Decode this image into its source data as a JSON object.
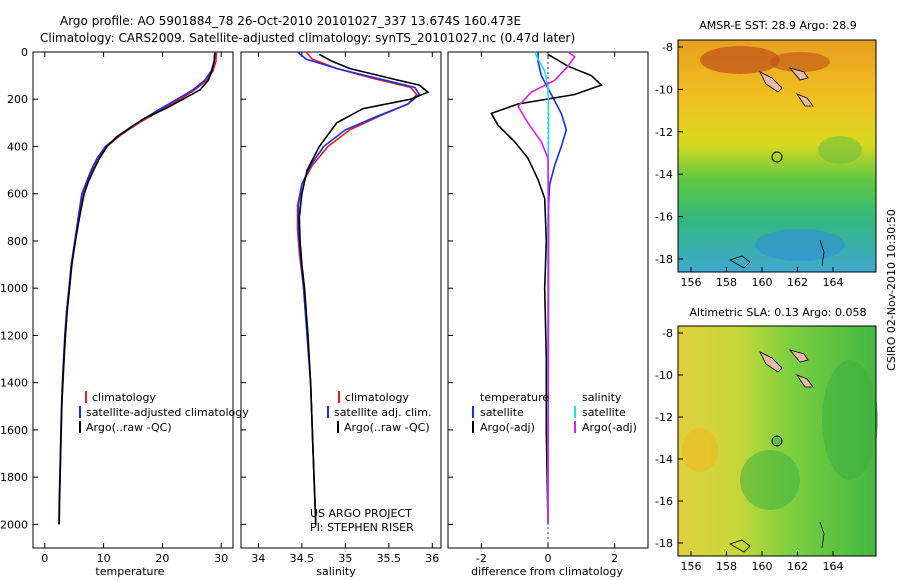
{
  "header": {
    "line1": "Argo profile: AO 5901884_78 26-Oct-2010 20101027_337 13.674S 160.473E",
    "line2": "Climatology: CARS2009. Satellite-adjusted climatology: synTS_20101027.nc (0.47d later)"
  },
  "side_label": "CSIRO 02-Nov-2010 10:30:50",
  "colors": {
    "climatology": "#e02020",
    "satellite": "#1a2ee6",
    "argo": "#000000",
    "sal_sat": "#20e0e0",
    "sal_argo": "#e020e0"
  },
  "chart_data": [
    {
      "type": "line",
      "id": "temperature",
      "xlabel": "temperature",
      "ylabel": "",
      "xlim": [
        -2,
        32
      ],
      "ylim": [
        2100,
        0
      ],
      "xticks": [
        0,
        10,
        20,
        30
      ],
      "yticks": [
        0,
        200,
        400,
        600,
        800,
        1000,
        1200,
        1400,
        1600,
        1800,
        2000
      ],
      "legend": [
        "climatology",
        "satellite-adjusted climatology",
        "Argo(..raw -QC)"
      ],
      "series": [
        {
          "name": "climatology",
          "color": "red",
          "points": [
            [
              29.2,
              0
            ],
            [
              29.1,
              40
            ],
            [
              28.6,
              80
            ],
            [
              27.5,
              120
            ],
            [
              25.5,
              160
            ],
            [
              23,
              200
            ],
            [
              19.5,
              250
            ],
            [
              16,
              300
            ],
            [
              13,
              350
            ],
            [
              10.5,
              400
            ],
            [
              9,
              450
            ],
            [
              8,
              500
            ],
            [
              7.2,
              550
            ],
            [
              6.4,
              600
            ],
            [
              5.8,
              700
            ],
            [
              5.2,
              800
            ],
            [
              4.6,
              900
            ],
            [
              4.2,
              1000
            ],
            [
              3.8,
              1100
            ],
            [
              3.5,
              1200
            ],
            [
              3.3,
              1300
            ],
            [
              3.1,
              1400
            ],
            [
              2.9,
              1500
            ],
            [
              2.8,
              1600
            ],
            [
              2.7,
              1700
            ],
            [
              2.6,
              1800
            ],
            [
              2.5,
              1900
            ],
            [
              2.45,
              2000
            ]
          ]
        },
        {
          "name": "satellite-adjusted climatology",
          "color": "blue",
          "points": [
            [
              28.9,
              0
            ],
            [
              28.8,
              40
            ],
            [
              28.3,
              80
            ],
            [
              27.2,
              120
            ],
            [
              25.2,
              160
            ],
            [
              22.5,
              200
            ],
            [
              19,
              250
            ],
            [
              15.8,
              300
            ],
            [
              12.8,
              350
            ],
            [
              10.3,
              400
            ],
            [
              8.9,
              450
            ],
            [
              7.9,
              500
            ],
            [
              7.1,
              550
            ],
            [
              6.3,
              600
            ],
            [
              5.7,
              700
            ],
            [
              5.1,
              800
            ],
            [
              4.5,
              900
            ],
            [
              4.1,
              1000
            ],
            [
              3.7,
              1100
            ],
            [
              3.4,
              1200
            ],
            [
              3.2,
              1300
            ],
            [
              3.0,
              1400
            ],
            [
              2.85,
              1500
            ],
            [
              2.75,
              1600
            ],
            [
              2.65,
              1700
            ],
            [
              2.55,
              1800
            ],
            [
              2.45,
              1900
            ],
            [
              2.4,
              2000
            ]
          ]
        },
        {
          "name": "Argo(..raw -QC)",
          "color": "black",
          "points": [
            [
              28.9,
              5
            ],
            [
              28.8,
              40
            ],
            [
              28.4,
              80
            ],
            [
              27.8,
              120
            ],
            [
              26.4,
              160
            ],
            [
              23.5,
              200
            ],
            [
              20.5,
              240
            ],
            [
              17,
              280
            ],
            [
              14.5,
              320
            ],
            [
              12.2,
              360
            ],
            [
              10.6,
              400
            ],
            [
              9.3,
              450
            ],
            [
              8.3,
              500
            ],
            [
              7.4,
              550
            ],
            [
              6.7,
              600
            ],
            [
              5.9,
              700
            ],
            [
              5.2,
              800
            ],
            [
              4.6,
              900
            ],
            [
              4.2,
              1000
            ],
            [
              3.8,
              1100
            ],
            [
              3.5,
              1200
            ],
            [
              3.25,
              1300
            ],
            [
              3.05,
              1400
            ],
            [
              2.9,
              1500
            ],
            [
              2.8,
              1600
            ],
            [
              2.7,
              1700
            ],
            [
              2.6,
              1800
            ],
            [
              2.5,
              1900
            ],
            [
              2.45,
              2000
            ]
          ]
        }
      ]
    },
    {
      "type": "line",
      "id": "salinity",
      "xlabel": "salinity",
      "xlim": [
        33.8,
        36.1
      ],
      "ylim": [
        2100,
        0
      ],
      "xticks": [
        34,
        34.5,
        35,
        35.5,
        36
      ],
      "legend": [
        "climatology",
        "satellite adj. clim.",
        "Argo(..raw -QC)"
      ],
      "annotation": [
        "US ARGO PROJECT",
        "PI: STEPHEN RISER"
      ],
      "series": [
        {
          "name": "climatology",
          "color": "red",
          "points": [
            [
              34.55,
              0
            ],
            [
              34.62,
              30
            ],
            [
              34.9,
              70
            ],
            [
              35.3,
              110
            ],
            [
              35.75,
              150
            ],
            [
              35.82,
              180
            ],
            [
              35.72,
              220
            ],
            [
              35.4,
              270
            ],
            [
              35.05,
              330
            ],
            [
              34.8,
              400
            ],
            [
              34.62,
              480
            ],
            [
              34.5,
              560
            ],
            [
              34.45,
              650
            ],
            [
              34.45,
              750
            ],
            [
              34.47,
              850
            ],
            [
              34.52,
              1000
            ],
            [
              34.56,
              1200
            ],
            [
              34.6,
              1400
            ],
            [
              34.62,
              1600
            ],
            [
              34.64,
              1800
            ],
            [
              34.66,
              2000
            ]
          ]
        },
        {
          "name": "satellite adj. clim.",
          "color": "blue",
          "points": [
            [
              34.45,
              0
            ],
            [
              34.55,
              30
            ],
            [
              34.9,
              70
            ],
            [
              35.35,
              110
            ],
            [
              35.8,
              150
            ],
            [
              35.85,
              180
            ],
            [
              35.72,
              220
            ],
            [
              35.38,
              270
            ],
            [
              35.0,
              330
            ],
            [
              34.75,
              400
            ],
            [
              34.6,
              480
            ],
            [
              34.5,
              560
            ],
            [
              34.46,
              650
            ],
            [
              34.46,
              750
            ],
            [
              34.48,
              850
            ],
            [
              34.52,
              1000
            ],
            [
              34.56,
              1200
            ],
            [
              34.6,
              1400
            ],
            [
              34.62,
              1600
            ],
            [
              34.64,
              1800
            ],
            [
              34.66,
              2000
            ]
          ]
        },
        {
          "name": "Argo(..raw -QC)",
          "color": "black",
          "points": [
            [
              34.7,
              10
            ],
            [
              34.85,
              40
            ],
            [
              35.05,
              70
            ],
            [
              35.5,
              110
            ],
            [
              35.85,
              140
            ],
            [
              35.95,
              170
            ],
            [
              35.75,
              200
            ],
            [
              35.2,
              240
            ],
            [
              34.9,
              300
            ],
            [
              34.7,
              400
            ],
            [
              34.56,
              500
            ],
            [
              34.5,
              600
            ],
            [
              34.47,
              700
            ],
            [
              34.48,
              800
            ],
            [
              34.5,
              900
            ],
            [
              34.53,
              1000
            ],
            [
              34.57,
              1200
            ],
            [
              34.6,
              1400
            ],
            [
              34.62,
              1600
            ],
            [
              34.64,
              1800
            ],
            [
              34.66,
              2000
            ]
          ]
        }
      ]
    },
    {
      "type": "line",
      "id": "difference",
      "xlabel": "difference from climatology",
      "xlim": [
        -3,
        3
      ],
      "ylim": [
        2100,
        0
      ],
      "xticks": [
        -2,
        0,
        2
      ],
      "legend_left_title": "temperature",
      "legend_right_title": "salinity",
      "legend": [
        "satellite",
        "Argo(-adj)",
        "satellite",
        "Argo(-adj)"
      ],
      "series": [
        {
          "name": "temperature satellite",
          "color": "blue",
          "points": [
            [
              -0.3,
              0
            ],
            [
              -0.3,
              40
            ],
            [
              -0.2,
              100
            ],
            [
              0.1,
              180
            ],
            [
              0.4,
              260
            ],
            [
              0.55,
              330
            ],
            [
              0.4,
              400
            ],
            [
              0.2,
              480
            ],
            [
              0.05,
              560
            ],
            [
              0,
              700
            ],
            [
              0,
              2000
            ]
          ]
        },
        {
          "name": "temperature Argo(-adj)",
          "color": "black",
          "points": [
            [
              0,
              10
            ],
            [
              0.6,
              60
            ],
            [
              1.3,
              100
            ],
            [
              1.6,
              140
            ],
            [
              0.8,
              180
            ],
            [
              -0.9,
              220
            ],
            [
              -1.7,
              260
            ],
            [
              -1.5,
              310
            ],
            [
              -1.0,
              380
            ],
            [
              -0.6,
              450
            ],
            [
              -0.3,
              540
            ],
            [
              -0.1,
              620
            ],
            [
              -0.05,
              800
            ],
            [
              -0.1,
              1000
            ],
            [
              -0.05,
              1300
            ],
            [
              -0.05,
              1600
            ],
            [
              0,
              2000
            ]
          ]
        },
        {
          "name": "salinity satellite",
          "color": "cyan",
          "points": [
            [
              -0.4,
              0
            ],
            [
              -0.3,
              30
            ],
            [
              -0.1,
              80
            ],
            [
              0,
              150
            ],
            [
              0.02,
              300
            ],
            [
              0,
              500
            ],
            [
              0,
              2000
            ]
          ]
        },
        {
          "name": "salinity Argo(-adj)",
          "color": "magenta",
          "points": [
            [
              0.6,
              0
            ],
            [
              0.8,
              20
            ],
            [
              0.6,
              60
            ],
            [
              0.2,
              120
            ],
            [
              -0.5,
              170
            ],
            [
              -0.9,
              230
            ],
            [
              -0.6,
              300
            ],
            [
              -0.2,
              380
            ],
            [
              0,
              450
            ],
            [
              0.02,
              700
            ],
            [
              0,
              2000
            ]
          ]
        }
      ]
    }
  ],
  "maps": [
    {
      "title": "AMSR-E SST: 28.9 Argo: 28.9",
      "yticks": [
        "-8",
        "-10",
        "-12",
        "-14",
        "-16",
        "-18"
      ],
      "xticks": [
        "156",
        "158",
        "160",
        "162",
        "164"
      ]
    },
    {
      "title": "Altimetric SLA: 0.13 Argo: 0.058",
      "yticks": [
        "-8",
        "-10",
        "-12",
        "-14",
        "-16",
        "-18"
      ],
      "xticks": [
        "156",
        "158",
        "160",
        "162",
        "164"
      ]
    }
  ]
}
